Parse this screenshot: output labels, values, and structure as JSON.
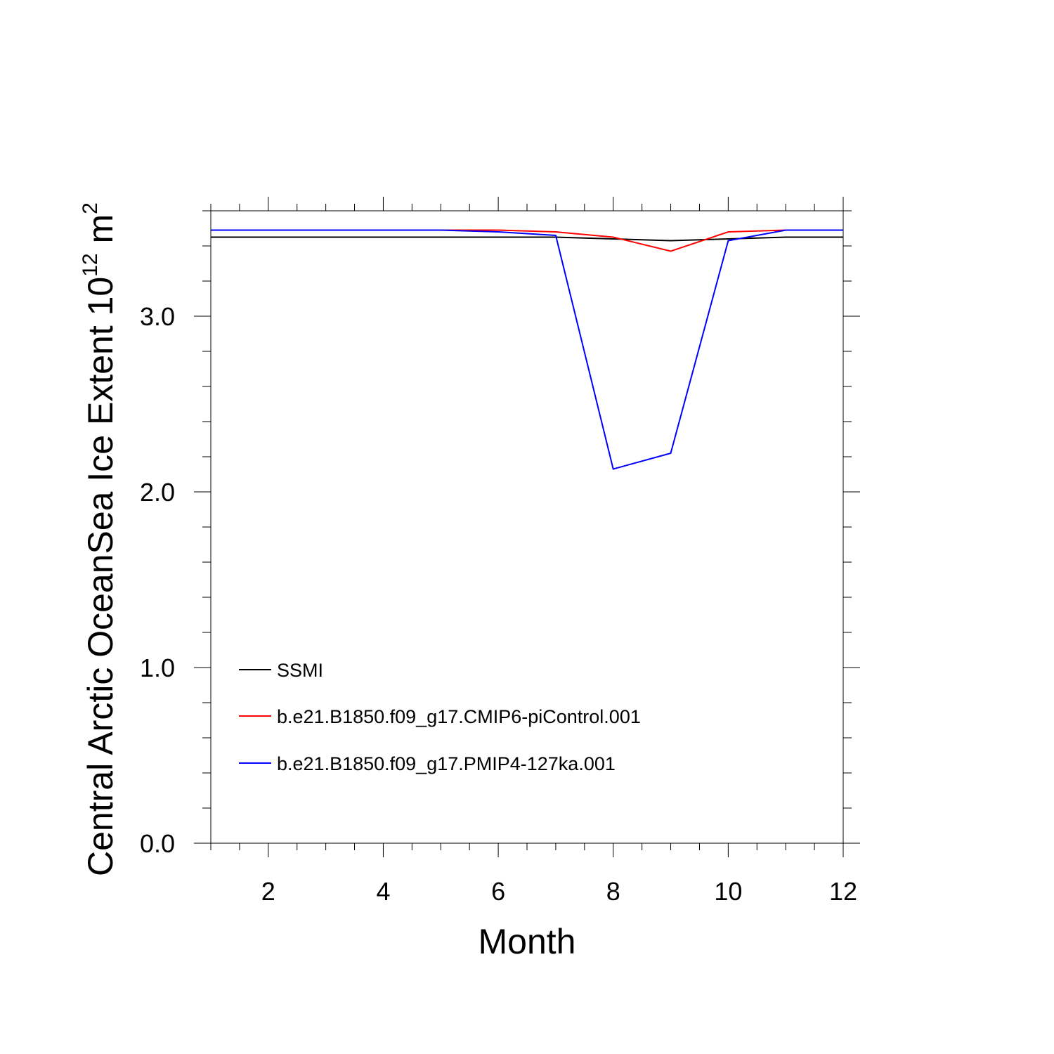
{
  "chart_data": {
    "type": "line",
    "xlabel": "Month",
    "ylabel": "Central Arctic OceanSea Ice Extent 10",
    "ylabel_exp1": "12",
    "ylabel_unit": " m",
    "ylabel_exp2": "2",
    "xlim": [
      1,
      12
    ],
    "ylim": [
      0,
      3.6
    ],
    "xticks": [
      2,
      4,
      6,
      8,
      10,
      12
    ],
    "xtick_labels": [
      "2",
      "4",
      "6",
      "8",
      "10",
      "12"
    ],
    "yticks": [
      0,
      1,
      2,
      3
    ],
    "ytick_labels": [
      "0.0",
      "1.0",
      "2.0",
      "3.0"
    ],
    "x": [
      1,
      2,
      3,
      4,
      5,
      6,
      7,
      8,
      9,
      10,
      11,
      12
    ],
    "series": [
      {
        "name": "SSMI",
        "color": "#000000",
        "values": [
          3.45,
          3.45,
          3.45,
          3.45,
          3.45,
          3.45,
          3.45,
          3.44,
          3.43,
          3.44,
          3.45,
          3.45
        ]
      },
      {
        "name": "b.e21.B1850.f09_g17.CMIP6-piControl.001",
        "color": "#ff0000",
        "values": [
          3.49,
          3.49,
          3.49,
          3.49,
          3.49,
          3.49,
          3.48,
          3.45,
          3.37,
          3.48,
          3.49,
          3.49
        ]
      },
      {
        "name": "b.e21.B1850.f09_g17.PMIP4-127ka.001",
        "color": "#0000ff",
        "values": [
          3.49,
          3.49,
          3.49,
          3.49,
          3.49,
          3.48,
          3.46,
          2.13,
          2.22,
          3.43,
          3.49,
          3.49
        ]
      }
    ],
    "legend_position": "bottom-left"
  }
}
